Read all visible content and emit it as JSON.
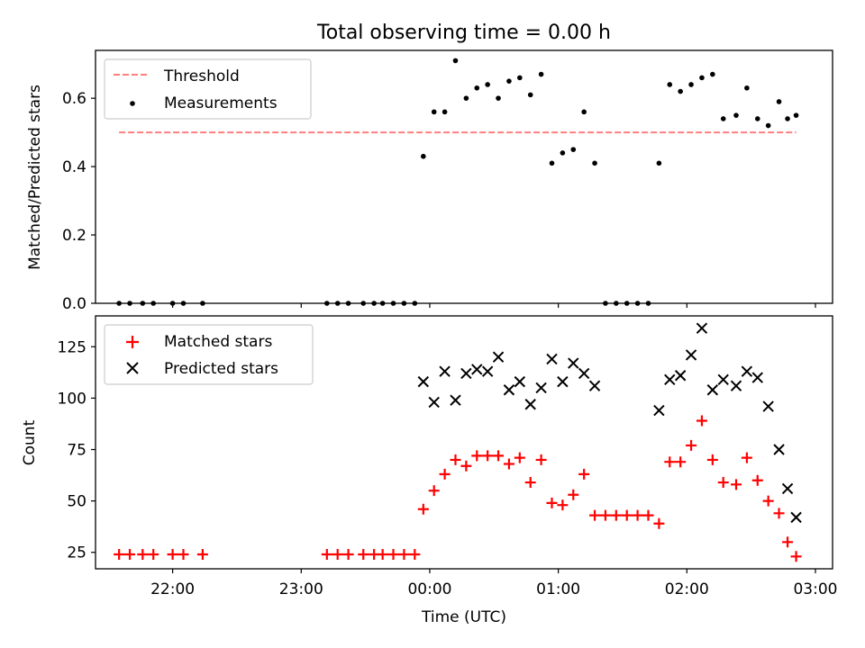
{
  "figure_title": "Total observing time = 0.00 h",
  "chart_data": [
    {
      "type": "scatter",
      "panel": "top",
      "ylabel": "Matched/Predicted stars",
      "xlabel": "",
      "xlim": [
        "21:24",
        "03:08"
      ],
      "ylim": [
        0,
        0.74
      ],
      "yticks": [
        0.0,
        0.2,
        0.4,
        0.6
      ],
      "ytick_labels": [
        "0.0",
        "0.2",
        "0.4",
        "0.6"
      ],
      "grid": false,
      "legend_position": "upper-left",
      "legend": [
        "Threshold",
        "Measurements"
      ],
      "threshold": {
        "name": "Threshold",
        "color": "#ff7f7f",
        "style": "dashed",
        "y": 0.5,
        "x_range": [
          "21:35",
          "02:51"
        ]
      },
      "series": [
        {
          "name": "Measurements",
          "color": "#000000",
          "marker": "dot",
          "points": [
            [
              "21:35",
              0
            ],
            [
              "21:40",
              0
            ],
            [
              "21:46",
              0
            ],
            [
              "21:51",
              0
            ],
            [
              "22:00",
              0
            ],
            [
              "22:05",
              0
            ],
            [
              "22:14",
              0
            ],
            [
              "23:12",
              0
            ],
            [
              "23:17",
              0
            ],
            [
              "23:22",
              0
            ],
            [
              "23:29",
              0
            ],
            [
              "23:34",
              0
            ],
            [
              "23:38",
              0
            ],
            [
              "23:43",
              0
            ],
            [
              "23:48",
              0
            ],
            [
              "23:53",
              0
            ],
            [
              "23:57",
              0.43
            ],
            [
              "00:02",
              0.56
            ],
            [
              "00:07",
              0.56
            ],
            [
              "00:12",
              0.71
            ],
            [
              "00:17",
              0.6
            ],
            [
              "00:22",
              0.63
            ],
            [
              "00:27",
              0.64
            ],
            [
              "00:32",
              0.6
            ],
            [
              "00:37",
              0.65
            ],
            [
              "00:42",
              0.66
            ],
            [
              "00:47",
              0.61
            ],
            [
              "00:52",
              0.67
            ],
            [
              "00:57",
              0.41
            ],
            [
              "01:02",
              0.44
            ],
            [
              "01:07",
              0.45
            ],
            [
              "01:12",
              0.56
            ],
            [
              "01:17",
              0.41
            ],
            [
              "01:22",
              0
            ],
            [
              "01:27",
              0
            ],
            [
              "01:32",
              0
            ],
            [
              "01:37",
              0
            ],
            [
              "01:42",
              0
            ],
            [
              "01:47",
              0.41
            ],
            [
              "01:52",
              0.64
            ],
            [
              "01:57",
              0.62
            ],
            [
              "02:02",
              0.64
            ],
            [
              "02:07",
              0.66
            ],
            [
              "02:12",
              0.67
            ],
            [
              "02:17",
              0.54
            ],
            [
              "02:23",
              0.55
            ],
            [
              "02:28",
              0.63
            ],
            [
              "02:33",
              0.54
            ],
            [
              "02:38",
              0.52
            ],
            [
              "02:43",
              0.59
            ],
            [
              "02:47",
              0.54
            ],
            [
              "02:51",
              0.55
            ]
          ]
        }
      ]
    },
    {
      "type": "scatter",
      "panel": "bottom",
      "xlabel": "Time (UTC)",
      "ylabel": "Count",
      "xlim": [
        "21:24",
        "03:08"
      ],
      "ylim": [
        17,
        140
      ],
      "xticks": [
        "22:00",
        "23:00",
        "00:00",
        "01:00",
        "02:00",
        "03:00"
      ],
      "yticks": [
        25,
        50,
        75,
        100,
        125
      ],
      "ytick_labels": [
        "25",
        "50",
        "75",
        "100",
        "125"
      ],
      "grid": false,
      "legend_position": "upper-left",
      "legend": [
        "Matched stars",
        "Predicted stars"
      ],
      "series": [
        {
          "name": "Matched stars",
          "color": "#ff0000",
          "marker": "plus",
          "points": [
            [
              "21:35",
              24
            ],
            [
              "21:40",
              24
            ],
            [
              "21:46",
              24
            ],
            [
              "21:51",
              24
            ],
            [
              "22:00",
              24
            ],
            [
              "22:05",
              24
            ],
            [
              "22:14",
              24
            ],
            [
              "23:12",
              24
            ],
            [
              "23:17",
              24
            ],
            [
              "23:22",
              24
            ],
            [
              "23:29",
              24
            ],
            [
              "23:34",
              24
            ],
            [
              "23:38",
              24
            ],
            [
              "23:43",
              24
            ],
            [
              "23:48",
              24
            ],
            [
              "23:53",
              24
            ],
            [
              "23:57",
              46
            ],
            [
              "00:02",
              55
            ],
            [
              "00:07",
              63
            ],
            [
              "00:12",
              70
            ],
            [
              "00:17",
              67
            ],
            [
              "00:22",
              72
            ],
            [
              "00:27",
              72
            ],
            [
              "00:32",
              72
            ],
            [
              "00:37",
              68
            ],
            [
              "00:42",
              71
            ],
            [
              "00:47",
              59
            ],
            [
              "00:52",
              70
            ],
            [
              "00:57",
              49
            ],
            [
              "01:02",
              48
            ],
            [
              "01:07",
              53
            ],
            [
              "01:12",
              63
            ],
            [
              "01:17",
              43
            ],
            [
              "01:22",
              43
            ],
            [
              "01:27",
              43
            ],
            [
              "01:32",
              43
            ],
            [
              "01:37",
              43
            ],
            [
              "01:42",
              43
            ],
            [
              "01:47",
              39
            ],
            [
              "01:52",
              69
            ],
            [
              "01:57",
              69
            ],
            [
              "02:02",
              77
            ],
            [
              "02:07",
              89
            ],
            [
              "02:12",
              70
            ],
            [
              "02:17",
              59
            ],
            [
              "02:23",
              58
            ],
            [
              "02:28",
              71
            ],
            [
              "02:33",
              60
            ],
            [
              "02:38",
              50
            ],
            [
              "02:43",
              44
            ],
            [
              "02:47",
              30
            ],
            [
              "02:51",
              23
            ]
          ]
        },
        {
          "name": "Predicted stars",
          "color": "#000000",
          "marker": "x",
          "points": [
            [
              "23:57",
              108
            ],
            [
              "00:02",
              98
            ],
            [
              "00:07",
              113
            ],
            [
              "00:12",
              99
            ],
            [
              "00:17",
              112
            ],
            [
              "00:22",
              114
            ],
            [
              "00:27",
              113
            ],
            [
              "00:32",
              120
            ],
            [
              "00:37",
              104
            ],
            [
              "00:42",
              108
            ],
            [
              "00:47",
              97
            ],
            [
              "00:52",
              105
            ],
            [
              "00:57",
              119
            ],
            [
              "01:02",
              108
            ],
            [
              "01:07",
              117
            ],
            [
              "01:12",
              112
            ],
            [
              "01:17",
              106
            ],
            [
              "01:47",
              94
            ],
            [
              "01:52",
              109
            ],
            [
              "01:57",
              111
            ],
            [
              "02:02",
              121
            ],
            [
              "02:07",
              134
            ],
            [
              "02:12",
              104
            ],
            [
              "02:17",
              109
            ],
            [
              "02:23",
              106
            ],
            [
              "02:28",
              113
            ],
            [
              "02:33",
              110
            ],
            [
              "02:38",
              96
            ],
            [
              "02:43",
              75
            ],
            [
              "02:47",
              56
            ],
            [
              "02:51",
              42
            ]
          ]
        }
      ]
    }
  ]
}
